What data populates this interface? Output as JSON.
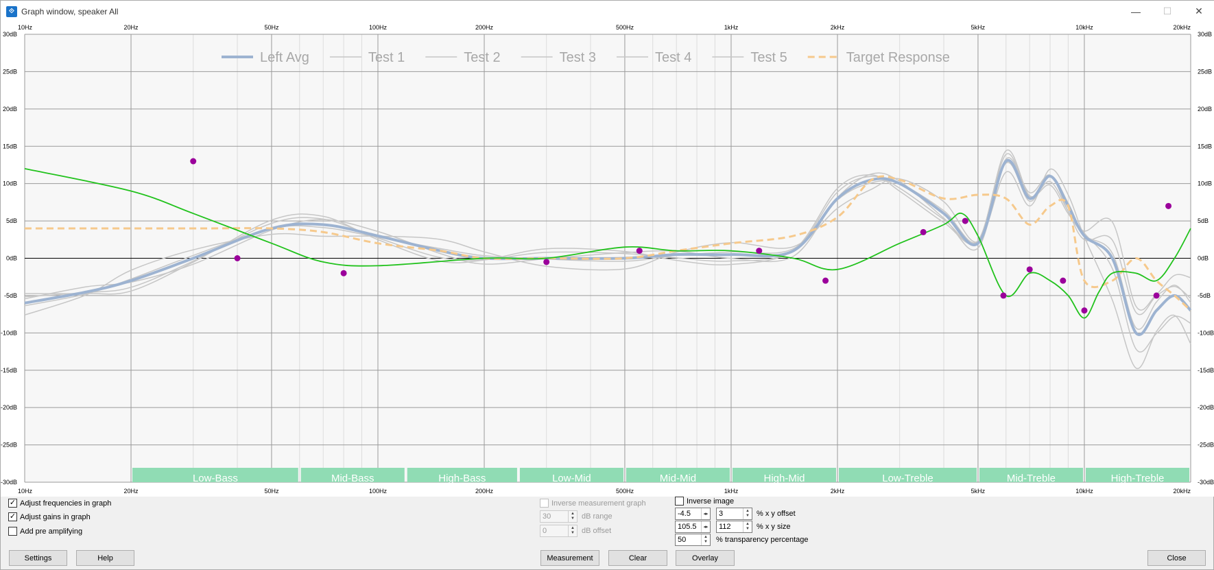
{
  "window": {
    "title": "Graph window, speaker All"
  },
  "graph": {
    "x_ticks": [
      "10Hz",
      "20Hz",
      "50Hz",
      "100Hz",
      "200Hz",
      "500Hz",
      "1kHz",
      "2kHz",
      "5kHz",
      "10kHz",
      "20kHz"
    ],
    "y_ticks": [
      "30dB",
      "25dB",
      "20dB",
      "15dB",
      "10dB",
      "5dB",
      "0dB",
      "-5dB",
      "-10dB",
      "-15dB",
      "-20dB",
      "-25dB",
      "-30dB"
    ],
    "legend": [
      "Left Avg",
      "Test 1",
      "Test 2",
      "Test 3",
      "Test 4",
      "Test 5",
      "Target Response"
    ],
    "bands": [
      "Low-Bass",
      "Mid-Bass",
      "High-Bass",
      "Low-Mid",
      "Mid-Mid",
      "High-Mid",
      "Low-Treble",
      "Mid-Treble",
      "High-Treble"
    ],
    "colors": {
      "avg": "#9db3d1",
      "test": "#c6c6c6",
      "target": "#f6c98c",
      "eq": "#21c21c",
      "points": "#9b009b",
      "band": "#90dcb4"
    }
  },
  "chart_data": {
    "type": "line",
    "x_scale": "log",
    "xlim": [
      10,
      20000
    ],
    "ylim": [
      -30,
      30
    ],
    "series": [
      {
        "name": "Left Avg",
        "x": [
          10,
          15,
          20,
          30,
          50,
          70,
          100,
          150,
          200,
          300,
          500,
          700,
          1000,
          1500,
          2000,
          2500,
          3000,
          4000,
          5000,
          6000,
          7000,
          8000,
          9000,
          10000,
          12000,
          14000,
          16000,
          18000,
          20000
        ],
        "values": [
          -6,
          -4.5,
          -3,
          0,
          4,
          4.5,
          3,
          1,
          0,
          0,
          0,
          0.5,
          0.5,
          1,
          8,
          10.5,
          10,
          6,
          2,
          13,
          8,
          11,
          7,
          3,
          0,
          -10,
          -7,
          -5,
          -7
        ]
      },
      {
        "name": "Target Response",
        "x": [
          10,
          30,
          50,
          70,
          100,
          150,
          200,
          300,
          500,
          700,
          1000,
          1500,
          2000,
          2500,
          3000,
          4000,
          5000,
          6000,
          7000,
          8000,
          9000,
          10000,
          12000,
          14000,
          16000,
          18000,
          20000
        ],
        "values": [
          4,
          4,
          4,
          3.5,
          2,
          1,
          0,
          0,
          0,
          1,
          2,
          3,
          5.5,
          10.5,
          10.5,
          8,
          8.5,
          8,
          4.5,
          7,
          7,
          -3,
          -3,
          0,
          -3,
          -5,
          -7
        ]
      },
      {
        "name": "",
        "x": [
          10,
          20,
          30,
          50,
          70,
          100,
          200,
          300,
          500,
          700,
          1000,
          1500,
          2000,
          3000,
          4000,
          4500,
          5000,
          6000,
          7000,
          8000,
          9000,
          10000,
          11000,
          12000,
          14000,
          16000,
          18000,
          20000
        ],
        "values": [
          12,
          9,
          6,
          2,
          -0.5,
          -1,
          0,
          0,
          1.5,
          1,
          1,
          0,
          -1.5,
          2,
          4.5,
          6,
          3,
          -5,
          -2,
          -3,
          -5,
          -8,
          -4.5,
          -2,
          -2,
          -3,
          0,
          4
        ]
      },
      {
        "name": "",
        "x": [
          30,
          40,
          80,
          300,
          550,
          1200,
          1850,
          3500,
          4600,
          5900,
          7000,
          8700,
          10000,
          16000,
          17300
        ],
        "values": [
          13,
          0,
          -2,
          -0.5,
          1,
          1,
          -3,
          3.5,
          5,
          -5,
          -1.5,
          -3,
          -7,
          -5,
          7
        ]
      }
    ],
    "grid": true
  },
  "controls": {
    "adjust_freq_label": "Adjust frequencies in graph",
    "adjust_gain_label": "Adjust gains in graph",
    "pre_amp_label": "Add pre amplifying",
    "inverse_measurement_label": "Inverse measurement graph",
    "db_range_value": "30",
    "db_range_label": "dB range",
    "db_offset_value": "0",
    "db_offset_label": "dB offset",
    "inverse_image_label": "Inverse image",
    "x_offset_value": "-4.5",
    "y_offset_value": "3",
    "offset_label": "% x y offset",
    "x_size_value": "105.5",
    "y_size_value": "112",
    "size_label": "% x y size",
    "transparency_value": "50",
    "transparency_label": "% transparency percentage",
    "settings_label": "Settings",
    "help_label": "Help",
    "measurement_label": "Measurement",
    "clear_label": "Clear",
    "overlay_label": "Overlay",
    "close_label": "Close"
  }
}
